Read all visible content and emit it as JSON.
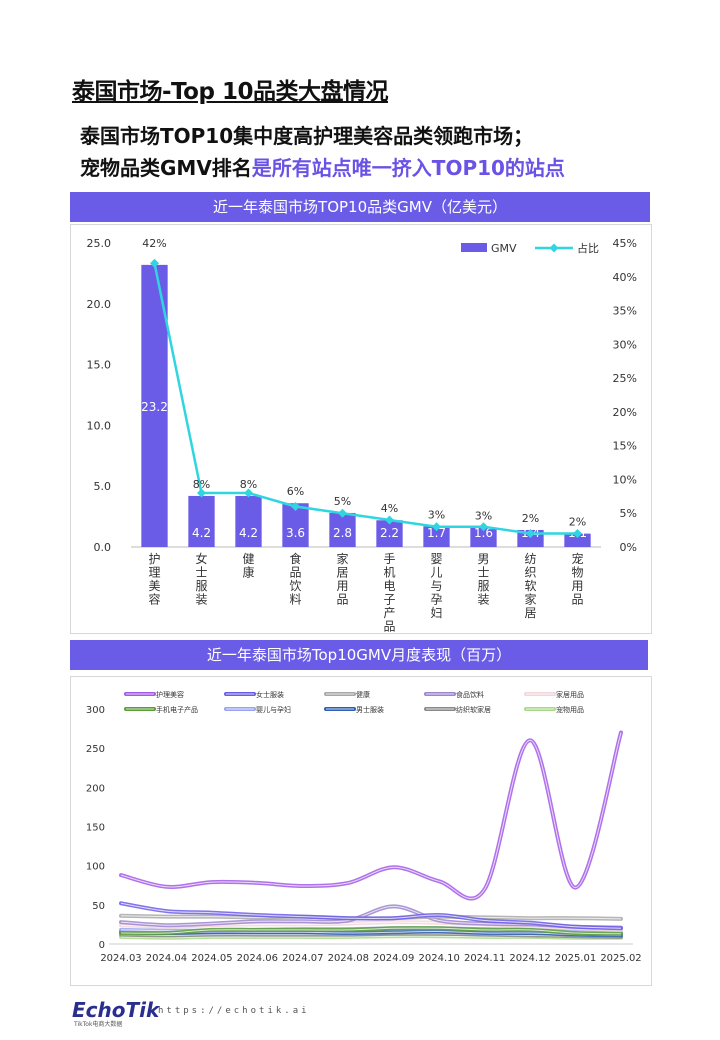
{
  "page": {
    "title": "泰国市场-Top 10品类大盘情况",
    "subtitle_line1": "泰国市场TOP10集中度高护理美容品类领跑市场；",
    "subtitle_line2_prefix": "宠物品类GMV排名",
    "subtitle_line2_highlight": "是所有站点唯一挤入TOP10的站点"
  },
  "footer": {
    "logo": "EchoTik",
    "logo_sub": "TikTok电商大数据",
    "url": "https://echotik.ai"
  },
  "chart_data": [
    {
      "type": "bar",
      "title": "近一年泰国市场TOP10品类GMV（亿美元）",
      "categories": [
        "护理美容",
        "女士服装",
        "健康",
        "食品饮料",
        "家居用品",
        "手机电子产品",
        "婴儿与孕妇",
        "男士服装",
        "纺织软家居",
        "宠物用品"
      ],
      "series": [
        {
          "name": "GMV",
          "type": "bar",
          "axis": "left",
          "values": [
            23.2,
            4.2,
            4.2,
            3.6,
            2.8,
            2.2,
            1.7,
            1.6,
            1.4,
            1.1
          ],
          "labels": [
            "23.2",
            "4.2",
            "4.2",
            "3.6",
            "2.8",
            "2.2",
            "1.7",
            "1.6",
            "1.4",
            "1.1"
          ],
          "color": "#6b5ce7"
        },
        {
          "name": "占比",
          "type": "line",
          "axis": "right",
          "values": [
            42,
            8,
            8,
            6,
            5,
            4,
            3,
            3,
            2,
            2
          ],
          "labels": [
            "42%",
            "8%",
            "8%",
            "6%",
            "5%",
            "4%",
            "3%",
            "3%",
            "2%",
            "2%"
          ],
          "color": "#2fd6e0"
        }
      ],
      "ylim_left": [
        0,
        25
      ],
      "yticks_left": [
        "0.0",
        "5.0",
        "10.0",
        "15.0",
        "20.0",
        "25.0"
      ],
      "ylim_right": [
        0,
        45
      ],
      "yticks_right": [
        "0%",
        "5%",
        "10%",
        "15%",
        "20%",
        "25%",
        "30%",
        "35%",
        "40%",
        "45%"
      ],
      "legend": "top-right",
      "grid": false
    },
    {
      "type": "line",
      "title": "近一年泰国市场Top10GMV月度表现（百万）",
      "x": [
        "2024.03",
        "2024.04",
        "2024.05",
        "2024.06",
        "2024.07",
        "2024.08",
        "2024.09",
        "2024.10",
        "2024.11",
        "2024.12",
        "2025.01",
        "2025.02"
      ],
      "ylim": [
        0,
        300
      ],
      "yticks": [
        "0",
        "50",
        "100",
        "150",
        "200",
        "250",
        "300"
      ],
      "legend": "top",
      "grid": false,
      "series": [
        {
          "name": "护理美容",
          "color": "#a259e8",
          "values": [
            88,
            73,
            79,
            78,
            74,
            78,
            98,
            80,
            70,
            260,
            72,
            270
          ]
        },
        {
          "name": "女士服装",
          "color": "#6b5ce7",
          "values": [
            52,
            42,
            40,
            37,
            35,
            33,
            33,
            37,
            30,
            27,
            22,
            20
          ]
        },
        {
          "name": "健康",
          "color": "#a8a8a8",
          "values": [
            36,
            35,
            35,
            34,
            35,
            33,
            33,
            35,
            34,
            33,
            33,
            32
          ]
        },
        {
          "name": "食品饮料",
          "color": "#9c84cf",
          "values": [
            28,
            24,
            26,
            29,
            29,
            30,
            48,
            30,
            26,
            25,
            22,
            21
          ]
        },
        {
          "name": "家居用品",
          "color": "#f2d6dc",
          "values": [
            24,
            22,
            24,
            25,
            25,
            26,
            28,
            27,
            25,
            23,
            20,
            18
          ]
        },
        {
          "name": "手机电子产品",
          "color": "#5a9e3a",
          "values": [
            14,
            14,
            18,
            18,
            18,
            18,
            20,
            20,
            18,
            18,
            14,
            13
          ]
        },
        {
          "name": "婴儿与孕妇",
          "color": "#9aa3f0",
          "values": [
            18,
            17,
            17,
            18,
            19,
            19,
            20,
            20,
            19,
            18,
            16,
            15
          ]
        },
        {
          "name": "男士服装",
          "color": "#2f5fb3",
          "values": [
            16,
            14,
            15,
            15,
            15,
            14,
            15,
            16,
            14,
            14,
            12,
            11
          ]
        },
        {
          "name": "纺织软家居",
          "color": "#8a8a8a",
          "values": [
            12,
            11,
            12,
            12,
            12,
            12,
            13,
            13,
            12,
            11,
            10,
            9
          ]
        },
        {
          "name": "宠物用品",
          "color": "#a8d88a",
          "values": [
            9,
            8,
            9,
            9,
            9,
            9,
            10,
            10,
            9,
            9,
            8,
            8
          ]
        }
      ]
    }
  ]
}
